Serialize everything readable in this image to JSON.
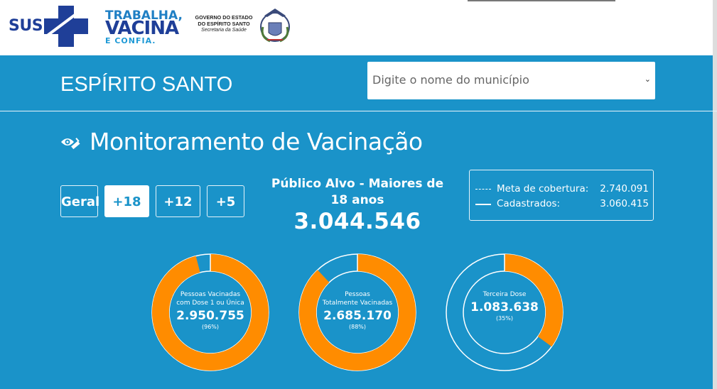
{
  "logos": {
    "sus": "SUS",
    "campaign": [
      "TRABALHA,",
      "VACINA",
      "E CONFIA."
    ],
    "gov": [
      "GOVERNO DO ESTADO",
      "DO ESPÍRITO SANTO"
    ],
    "gov_sub": "Secretaria da Saúde"
  },
  "header": {
    "state": "ESPÍRITO SANTO",
    "select_placeholder": "Digite o nome do município"
  },
  "title": "Monitoramento de Vacinação",
  "filters": [
    {
      "label": "Geral",
      "active": false
    },
    {
      "label": "+18",
      "active": true
    },
    {
      "label": "+12",
      "active": false
    },
    {
      "label": "+5",
      "active": false
    }
  ],
  "target": {
    "label": "Público Alvo - Maiores de 18 anos",
    "value": "3.044.546"
  },
  "legend": [
    {
      "style": "dashed",
      "label": "Meta de cobertura:",
      "value": "2.740.091"
    },
    {
      "style": "solid",
      "label": "Cadastrados:",
      "value": "3.060.415"
    }
  ],
  "colors": {
    "background": "#1a93c9",
    "accent": "#ff8c00",
    "white": "#ffffff"
  },
  "donuts": [
    {
      "lines": [
        "Pessoas Vacinadas",
        "com Dose 1 ou Única"
      ],
      "value": "2.950.755",
      "pct": "(96%)",
      "fraction": 0.96
    },
    {
      "lines": [
        "Pessoas",
        "Totalmente Vacinadas"
      ],
      "value": "2.685.170",
      "pct": "(88%)",
      "fraction": 0.88
    },
    {
      "lines": [
        "Terceira Dose"
      ],
      "value": "1.083.638",
      "pct": "(35%)",
      "fraction": 0.35
    }
  ]
}
